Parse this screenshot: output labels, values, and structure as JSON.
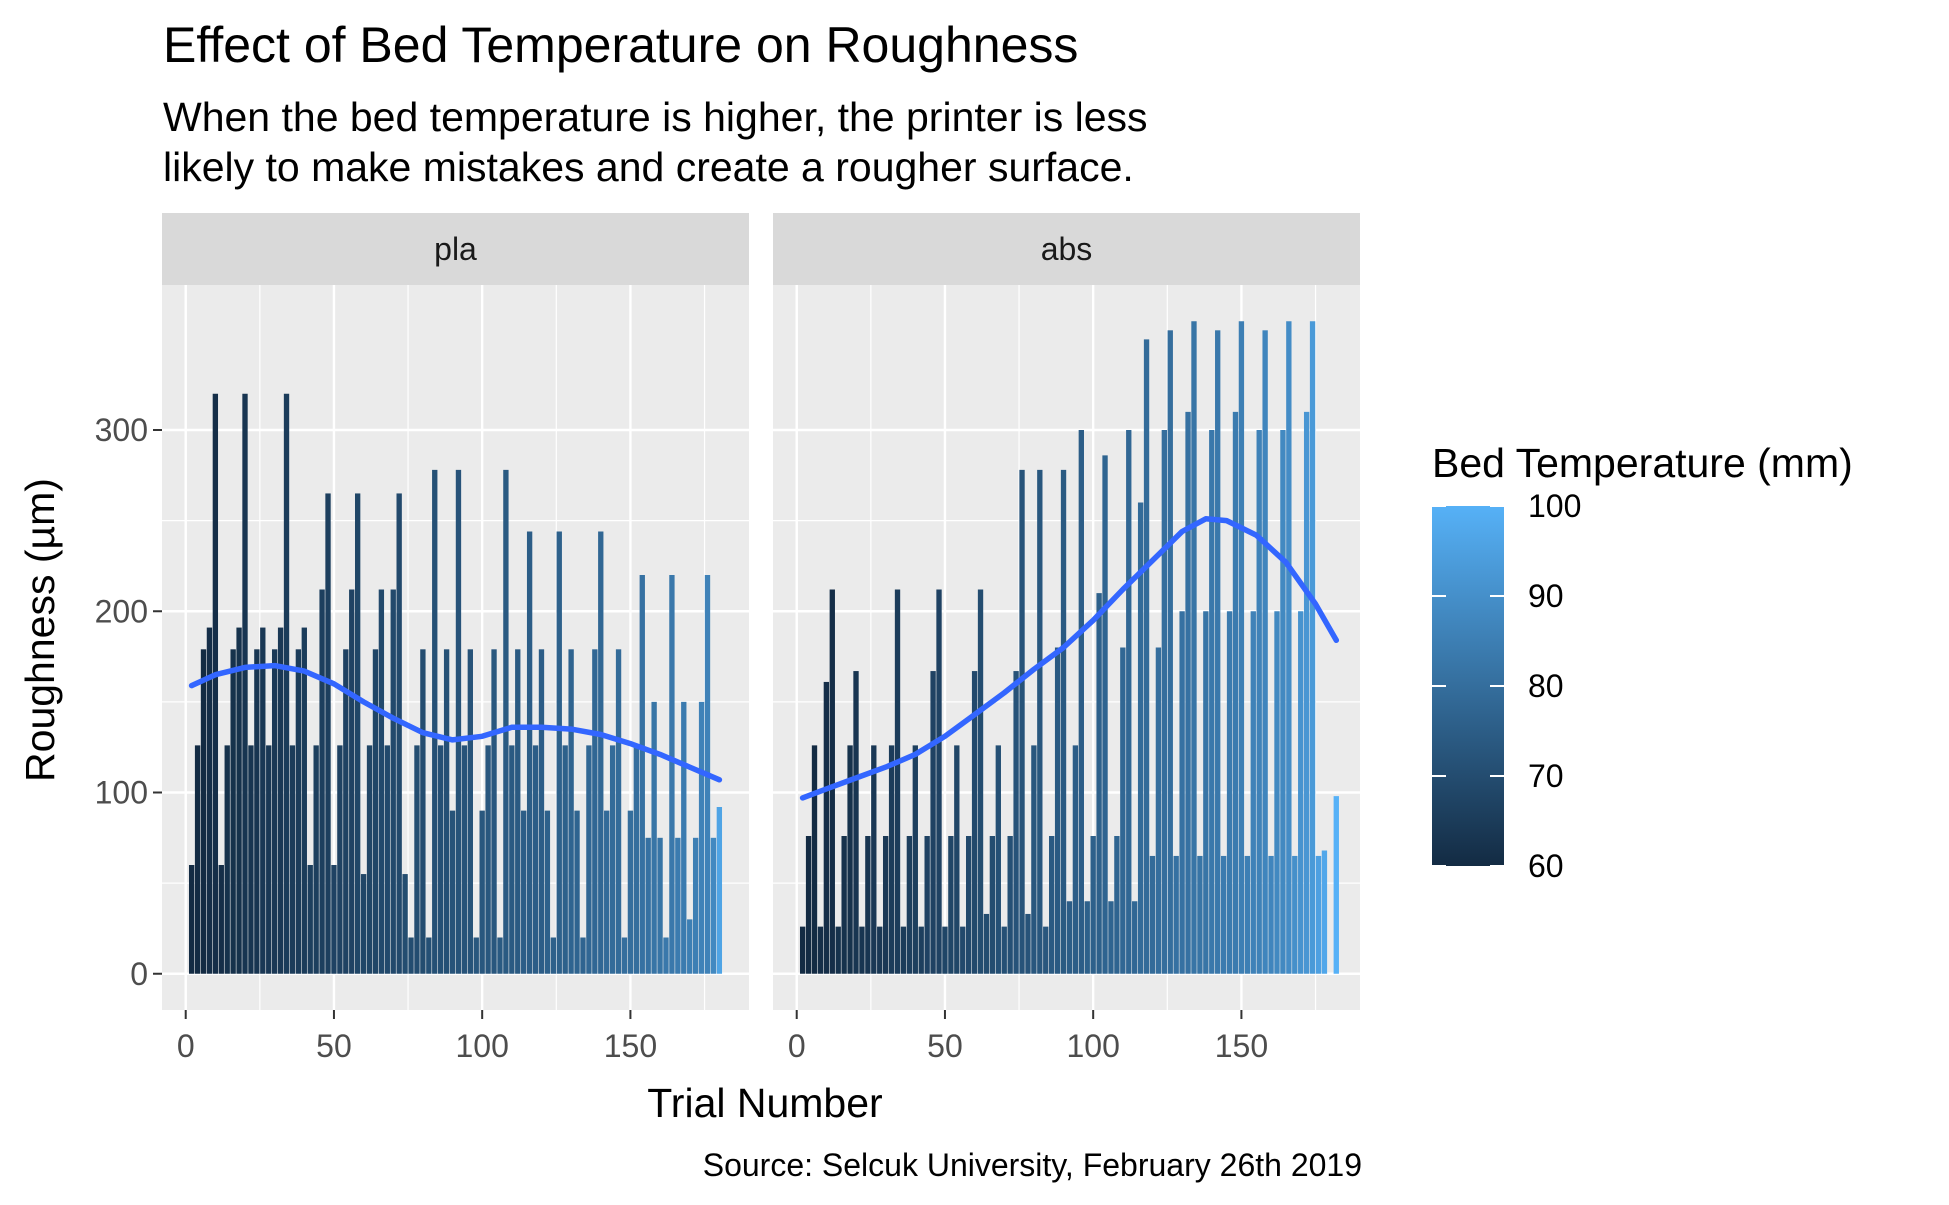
{
  "chart_data": {
    "type": "bar",
    "title": "Effect of Bed Temperature on Roughness",
    "subtitle_lines": [
      "When the bed temperature is higher, the printer is less",
      "likely to make mistakes and create a rougher surface."
    ],
    "xlabel": "Trial Number",
    "ylabel": "Roughness (µm)",
    "caption": "Source: Selcuk University, February 26th 2019",
    "xlim": [
      -8,
      190
    ],
    "ylim": [
      -20,
      380
    ],
    "x_ticks": [
      0,
      50,
      100,
      150
    ],
    "y_ticks": [
      0,
      100,
      200,
      300
    ],
    "grid": true,
    "legend": {
      "title": "Bed Temperature (mm)",
      "position": "right",
      "min": 60,
      "max": 100,
      "ticks": [
        60,
        70,
        80,
        90,
        100
      ],
      "color_low": "#132B43",
      "color_high": "#56B1F7"
    },
    "smooth_color": "#3366FF",
    "panels": [
      {
        "name": "pla",
        "bars": [
          [
            2,
            60,
            60
          ],
          [
            4,
            126,
            60
          ],
          [
            6,
            179,
            60
          ],
          [
            8,
            191,
            61
          ],
          [
            10,
            320,
            61
          ],
          [
            12,
            60,
            61
          ],
          [
            14,
            126,
            62
          ],
          [
            16,
            179,
            62
          ],
          [
            18,
            191,
            62
          ],
          [
            20,
            320,
            63
          ],
          [
            22,
            126,
            63
          ],
          [
            24,
            179,
            63
          ],
          [
            26,
            191,
            64
          ],
          [
            28,
            126,
            64
          ],
          [
            30,
            179,
            64
          ],
          [
            32,
            191,
            64
          ],
          [
            34,
            320,
            65
          ],
          [
            36,
            126,
            65
          ],
          [
            38,
            179,
            65
          ],
          [
            40,
            191,
            65
          ],
          [
            42,
            60,
            66
          ],
          [
            44,
            126,
            66
          ],
          [
            46,
            212,
            66
          ],
          [
            48,
            265,
            66
          ],
          [
            50,
            60,
            67
          ],
          [
            52,
            126,
            67
          ],
          [
            54,
            179,
            67
          ],
          [
            56,
            212,
            67
          ],
          [
            58,
            265,
            68
          ],
          [
            60,
            55,
            68
          ],
          [
            62,
            126,
            68
          ],
          [
            64,
            179,
            68
          ],
          [
            66,
            212,
            69
          ],
          [
            68,
            126,
            69
          ],
          [
            70,
            212,
            69
          ],
          [
            72,
            265,
            69
          ],
          [
            74,
            55,
            70
          ],
          [
            76,
            20,
            70
          ],
          [
            78,
            126,
            70
          ],
          [
            80,
            179,
            70
          ],
          [
            82,
            20,
            71
          ],
          [
            84,
            278,
            71
          ],
          [
            86,
            126,
            71
          ],
          [
            88,
            179,
            71
          ],
          [
            90,
            90,
            72
          ],
          [
            92,
            278,
            72
          ],
          [
            94,
            126,
            72
          ],
          [
            96,
            179,
            72
          ],
          [
            98,
            20,
            73
          ],
          [
            100,
            90,
            73
          ],
          [
            102,
            126,
            73
          ],
          [
            104,
            179,
            73
          ],
          [
            106,
            20,
            74
          ],
          [
            108,
            278,
            74
          ],
          [
            110,
            126,
            74
          ],
          [
            112,
            179,
            74
          ],
          [
            114,
            90,
            75
          ],
          [
            116,
            244,
            75
          ],
          [
            118,
            126,
            75
          ],
          [
            120,
            179,
            75
          ],
          [
            122,
            90,
            76
          ],
          [
            124,
            20,
            76
          ],
          [
            126,
            244,
            76
          ],
          [
            128,
            126,
            76
          ],
          [
            130,
            179,
            77
          ],
          [
            132,
            90,
            77
          ],
          [
            134,
            20,
            77
          ],
          [
            136,
            126,
            78
          ],
          [
            138,
            179,
            78
          ],
          [
            140,
            244,
            78
          ],
          [
            142,
            90,
            79
          ],
          [
            144,
            126,
            79
          ],
          [
            146,
            179,
            79
          ],
          [
            148,
            20,
            80
          ],
          [
            150,
            90,
            80
          ],
          [
            152,
            126,
            80
          ],
          [
            154,
            220,
            81
          ],
          [
            156,
            75,
            81
          ],
          [
            158,
            150,
            82
          ],
          [
            160,
            75,
            82
          ],
          [
            162,
            20,
            83
          ],
          [
            164,
            220,
            83
          ],
          [
            166,
            75,
            84
          ],
          [
            168,
            150,
            84
          ],
          [
            170,
            30,
            85
          ],
          [
            172,
            75,
            85
          ],
          [
            174,
            150,
            86
          ],
          [
            176,
            220,
            86
          ],
          [
            178,
            75,
            88
          ],
          [
            180,
            92,
            96
          ]
        ],
        "smooth": [
          [
            2,
            159
          ],
          [
            10,
            165
          ],
          [
            20,
            169
          ],
          [
            30,
            170
          ],
          [
            40,
            167
          ],
          [
            50,
            160
          ],
          [
            60,
            150
          ],
          [
            70,
            141
          ],
          [
            80,
            133
          ],
          [
            90,
            129
          ],
          [
            100,
            131
          ],
          [
            110,
            136
          ],
          [
            120,
            136
          ],
          [
            130,
            135
          ],
          [
            140,
            132
          ],
          [
            150,
            127
          ],
          [
            160,
            121
          ],
          [
            170,
            114
          ],
          [
            180,
            107
          ]
        ]
      },
      {
        "name": "abs",
        "bars": [
          [
            2,
            26,
            60
          ],
          [
            4,
            76,
            60
          ],
          [
            6,
            126,
            60
          ],
          [
            8,
            26,
            61
          ],
          [
            10,
            161,
            61
          ],
          [
            12,
            212,
            61
          ],
          [
            14,
            26,
            62
          ],
          [
            16,
            76,
            62
          ],
          [
            18,
            126,
            62
          ],
          [
            20,
            167,
            63
          ],
          [
            22,
            26,
            63
          ],
          [
            24,
            76,
            63
          ],
          [
            26,
            126,
            64
          ],
          [
            28,
            26,
            64
          ],
          [
            30,
            76,
            64
          ],
          [
            32,
            126,
            65
          ],
          [
            34,
            212,
            65
          ],
          [
            36,
            26,
            65
          ],
          [
            38,
            76,
            66
          ],
          [
            40,
            126,
            66
          ],
          [
            42,
            26,
            66
          ],
          [
            44,
            76,
            67
          ],
          [
            46,
            167,
            67
          ],
          [
            48,
            212,
            67
          ],
          [
            50,
            26,
            68
          ],
          [
            52,
            76,
            68
          ],
          [
            54,
            126,
            68
          ],
          [
            56,
            26,
            69
          ],
          [
            58,
            76,
            69
          ],
          [
            60,
            167,
            69
          ],
          [
            62,
            212,
            70
          ],
          [
            64,
            33,
            70
          ],
          [
            66,
            76,
            70
          ],
          [
            68,
            126,
            71
          ],
          [
            70,
            26,
            71
          ],
          [
            72,
            76,
            71
          ],
          [
            74,
            167,
            72
          ],
          [
            76,
            278,
            72
          ],
          [
            78,
            33,
            72
          ],
          [
            80,
            126,
            73
          ],
          [
            82,
            278,
            73
          ],
          [
            84,
            26,
            73
          ],
          [
            86,
            76,
            74
          ],
          [
            88,
            180,
            74
          ],
          [
            90,
            278,
            74
          ],
          [
            92,
            40,
            75
          ],
          [
            94,
            126,
            75
          ],
          [
            96,
            300,
            75
          ],
          [
            98,
            40,
            76
          ],
          [
            100,
            76,
            76
          ],
          [
            102,
            210,
            76
          ],
          [
            104,
            286,
            77
          ],
          [
            106,
            40,
            77
          ],
          [
            108,
            76,
            77
          ],
          [
            110,
            180,
            78
          ],
          [
            112,
            300,
            78
          ],
          [
            114,
            40,
            78
          ],
          [
            116,
            260,
            79
          ],
          [
            118,
            350,
            79
          ],
          [
            120,
            65,
            79
          ],
          [
            122,
            180,
            80
          ],
          [
            124,
            300,
            80
          ],
          [
            126,
            355,
            80
          ],
          [
            128,
            65,
            81
          ],
          [
            130,
            200,
            81
          ],
          [
            132,
            310,
            81
          ],
          [
            134,
            360,
            82
          ],
          [
            136,
            65,
            82
          ],
          [
            138,
            200,
            82
          ],
          [
            140,
            300,
            83
          ],
          [
            142,
            355,
            83
          ],
          [
            144,
            65,
            84
          ],
          [
            146,
            200,
            84
          ],
          [
            148,
            310,
            84
          ],
          [
            150,
            360,
            85
          ],
          [
            152,
            65,
            85
          ],
          [
            154,
            200,
            86
          ],
          [
            156,
            300,
            86
          ],
          [
            158,
            355,
            87
          ],
          [
            160,
            65,
            87
          ],
          [
            162,
            200,
            88
          ],
          [
            164,
            300,
            88
          ],
          [
            166,
            360,
            89
          ],
          [
            168,
            65,
            90
          ],
          [
            170,
            200,
            91
          ],
          [
            172,
            310,
            92
          ],
          [
            174,
            360,
            93
          ],
          [
            176,
            65,
            95
          ],
          [
            178,
            68,
            97
          ],
          [
            182,
            98,
            100
          ]
        ],
        "smooth": [
          [
            2,
            97
          ],
          [
            10,
            102
          ],
          [
            20,
            108
          ],
          [
            30,
            114
          ],
          [
            40,
            121
          ],
          [
            50,
            131
          ],
          [
            60,
            143
          ],
          [
            70,
            155
          ],
          [
            80,
            168
          ],
          [
            90,
            180
          ],
          [
            100,
            195
          ],
          [
            110,
            212
          ],
          [
            120,
            228
          ],
          [
            130,
            244
          ],
          [
            138,
            251
          ],
          [
            145,
            250
          ],
          [
            155,
            242
          ],
          [
            165,
            227
          ],
          [
            175,
            204
          ],
          [
            182,
            184
          ]
        ]
      }
    ]
  }
}
